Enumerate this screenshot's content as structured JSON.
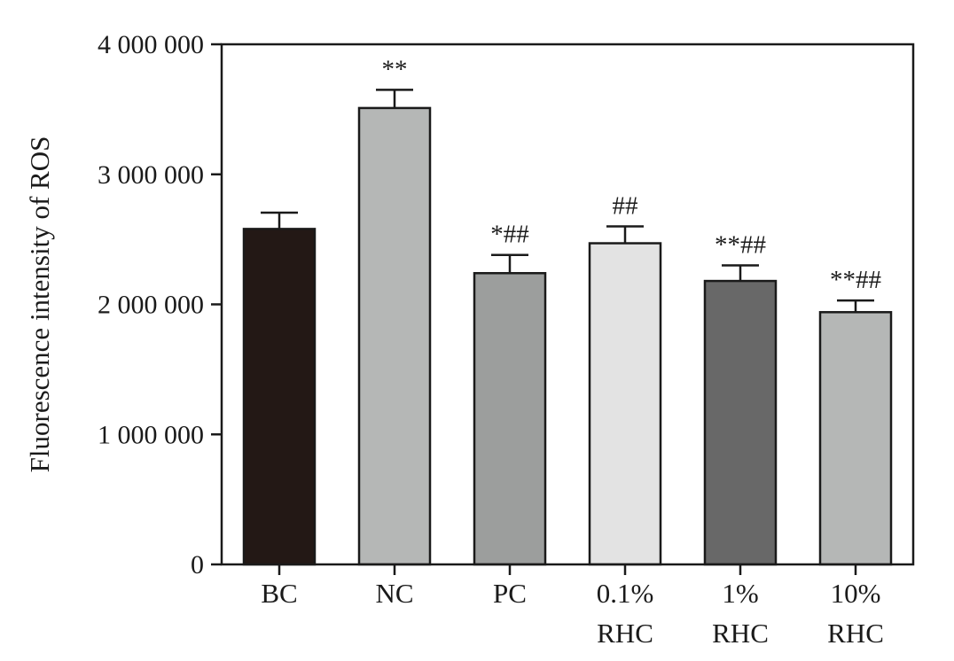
{
  "chart_data": {
    "type": "bar",
    "title": "",
    "xlabel": "",
    "ylabel": "Fluorescence intensity of ROS",
    "ylim": [
      0,
      4000000
    ],
    "yticks": [
      {
        "value": 0,
        "label": "0"
      },
      {
        "value": 1000000,
        "label": "1 000 000"
      },
      {
        "value": 2000000,
        "label": "2 000 000"
      },
      {
        "value": 3000000,
        "label": "3 000 000"
      },
      {
        "value": 4000000,
        "label": "4 000 000"
      }
    ],
    "grid": false,
    "categories": [
      {
        "lines": [
          "BC"
        ]
      },
      {
        "lines": [
          "NC"
        ]
      },
      {
        "lines": [
          "PC"
        ]
      },
      {
        "lines": [
          "0.1%",
          "RHC"
        ]
      },
      {
        "lines": [
          "1%",
          "RHC"
        ]
      },
      {
        "lines": [
          "10%",
          "RHC"
        ]
      }
    ],
    "values": [
      2580000,
      3510000,
      2240000,
      2470000,
      2180000,
      1940000
    ],
    "errors": [
      125000,
      140000,
      140000,
      130000,
      120000,
      90000
    ],
    "annotations": [
      "",
      "**",
      "*##",
      "##",
      "**##",
      "**##"
    ],
    "colors": [
      "#231815",
      "#b5b7b6",
      "#9c9e9d",
      "#e3e3e3",
      "#686868",
      "#b5b7b6"
    ]
  }
}
